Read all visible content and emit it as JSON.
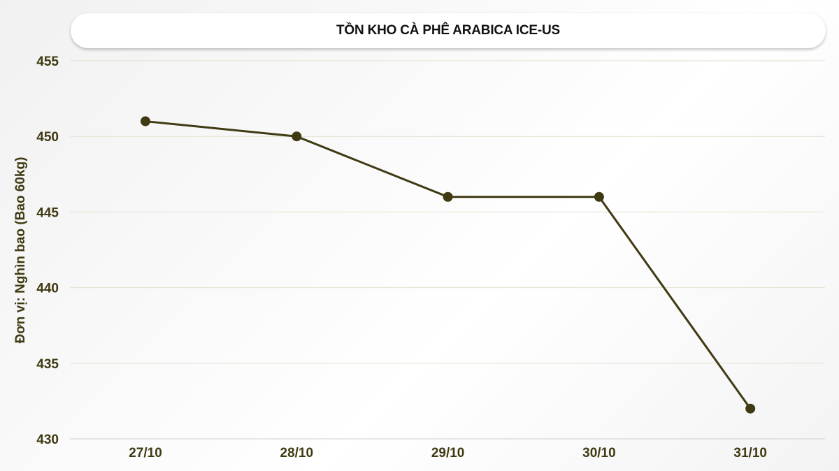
{
  "chart_data": {
    "type": "line",
    "title": "TỒN KHO CÀ PHÊ ARABICA ICE-US",
    "xlabel": "",
    "ylabel": "Đơn vị: Nghìn bao (Bao 60kg)",
    "categories": [
      "27/10",
      "28/10",
      "29/10",
      "30/10",
      "31/10"
    ],
    "values": [
      451,
      450,
      446,
      446,
      432
    ],
    "ylim": [
      430,
      455
    ],
    "yticks": [
      430,
      435,
      440,
      445,
      450,
      455
    ],
    "grid": true,
    "line_color": "#3f3a12"
  }
}
